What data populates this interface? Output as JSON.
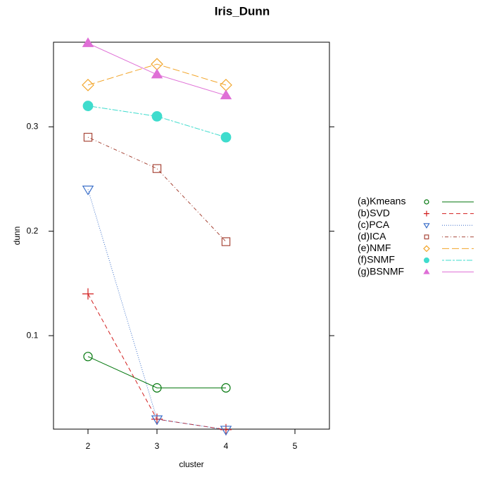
{
  "chart_data": {
    "type": "line",
    "title": "Iris_Dunn",
    "xlabel": "cluster",
    "ylabel": "dunn",
    "x": [
      2,
      3,
      4
    ],
    "xlim": [
      1.5,
      5.5
    ],
    "xticks": [
      2,
      3,
      4,
      5
    ],
    "ylim": [
      0.0105,
      0.381
    ],
    "yticks": [
      0.1,
      0.2,
      0.3
    ],
    "series": [
      {
        "name": "(a)Kmeans",
        "color": "#00760b",
        "marker": "circle",
        "linestyle": "solid",
        "values": [
          0.08,
          0.05,
          0.05
        ]
      },
      {
        "name": "(b)SVD",
        "color": "#d21f1f",
        "marker": "plus",
        "linestyle": "dashed",
        "values": [
          0.14,
          0.02,
          0.01
        ]
      },
      {
        "name": "(c)PCA",
        "color": "#3b6fc9",
        "marker": "triangle-down",
        "linestyle": "dotted",
        "values": [
          0.24,
          0.02,
          0.01
        ]
      },
      {
        "name": "(d)ICA",
        "color": "#a8483a",
        "marker": "square",
        "linestyle": "dotdash",
        "values": [
          0.29,
          0.26,
          0.19
        ]
      },
      {
        "name": "(e)NMF",
        "color": "#f2a52a",
        "marker": "diamond",
        "linestyle": "longdash",
        "values": [
          0.34,
          0.36,
          0.34
        ]
      },
      {
        "name": "(f)SNMF",
        "color": "#3fdccd",
        "marker": "filled-circle",
        "linestyle": "twodash",
        "values": [
          0.32,
          0.31,
          0.29
        ]
      },
      {
        "name": "(g)BSNMF",
        "color": "#df6fd6",
        "marker": "filled-triangle",
        "linestyle": "solid",
        "values": [
          0.38,
          0.35,
          0.33
        ]
      }
    ]
  }
}
